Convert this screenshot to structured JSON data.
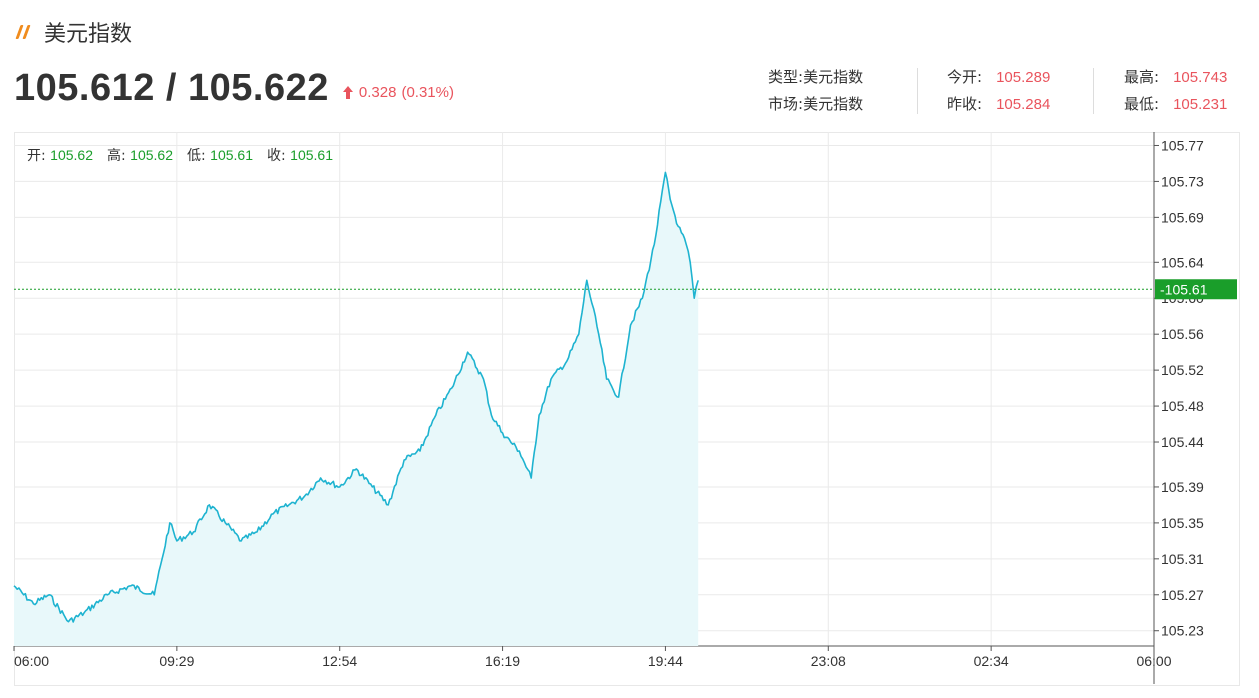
{
  "header": {
    "title": "美元指数",
    "price": "105.612 / 105.622",
    "change": "0.328",
    "change_pct": "(0.31%)"
  },
  "info": {
    "type_label": "类型:",
    "type_value": "美元指数",
    "market_label": "市场:",
    "market_value": "美元指数",
    "open_label": "今开:",
    "open_value": "105.289",
    "prev_close_label": "昨收:",
    "prev_close_value": "105.284",
    "high_label": "最高:",
    "high_value": "105.743",
    "low_label": "最低:",
    "low_value": "105.231"
  },
  "ohlc": {
    "open_label": "开:",
    "open_value": "105.62",
    "high_label": "高:",
    "high_value": "105.62",
    "low_label": "低:",
    "low_value": "105.61",
    "close_label": "收:",
    "close_value": "105.61"
  },
  "colors": {
    "line": "#1eb3d0",
    "fill": "#e8f8fa",
    "current_price": "#1a9e2a",
    "rise": "#e9545d"
  },
  "chart_data": {
    "type": "area",
    "title": "",
    "xlabel": "",
    "ylabel": "",
    "x_ticks": [
      "06:00",
      "09:29",
      "12:54",
      "16:19",
      "19:44",
      "23:08",
      "02:34",
      "06:00"
    ],
    "y_ticks": [
      "105.77",
      "105.73",
      "105.69",
      "105.64",
      "105.60",
      "105.56",
      "105.52",
      "105.48",
      "105.44",
      "105.39",
      "105.35",
      "105.31",
      "105.27",
      "105.23"
    ],
    "ylim": [
      105.213,
      105.785
    ],
    "current_price": 105.61,
    "current_price_label": "105.61",
    "grid": true,
    "x": [
      "06:00",
      "06:25",
      "06:45",
      "07:10",
      "07:30",
      "08:00",
      "08:30",
      "09:00",
      "09:10",
      "09:20",
      "09:29",
      "09:50",
      "10:10",
      "10:30",
      "10:50",
      "11:10",
      "11:30",
      "11:50",
      "12:10",
      "12:30",
      "12:54",
      "13:15",
      "13:35",
      "13:55",
      "14:15",
      "14:35",
      "14:55",
      "15:15",
      "15:35",
      "15:55",
      "16:05",
      "16:19",
      "16:40",
      "16:55",
      "17:05",
      "17:20",
      "17:40",
      "17:55",
      "18:05",
      "18:20",
      "18:30",
      "18:45",
      "19:00",
      "19:15",
      "19:30",
      "19:44",
      "19:50",
      "20:00",
      "20:10",
      "20:15",
      "20:20",
      "20:25"
    ],
    "y": [
      105.28,
      105.26,
      105.27,
      105.24,
      105.25,
      105.27,
      105.28,
      105.27,
      105.31,
      105.35,
      105.33,
      105.34,
      105.37,
      105.35,
      105.33,
      105.34,
      105.36,
      105.37,
      105.38,
      105.4,
      105.39,
      105.41,
      105.39,
      105.37,
      105.42,
      105.43,
      105.47,
      105.5,
      105.54,
      105.51,
      105.47,
      105.45,
      105.43,
      105.4,
      105.47,
      105.51,
      105.53,
      105.56,
      105.62,
      105.56,
      105.51,
      105.49,
      105.57,
      105.6,
      105.66,
      105.74,
      105.71,
      105.68,
      105.66,
      105.64,
      105.6,
      105.62
    ]
  }
}
